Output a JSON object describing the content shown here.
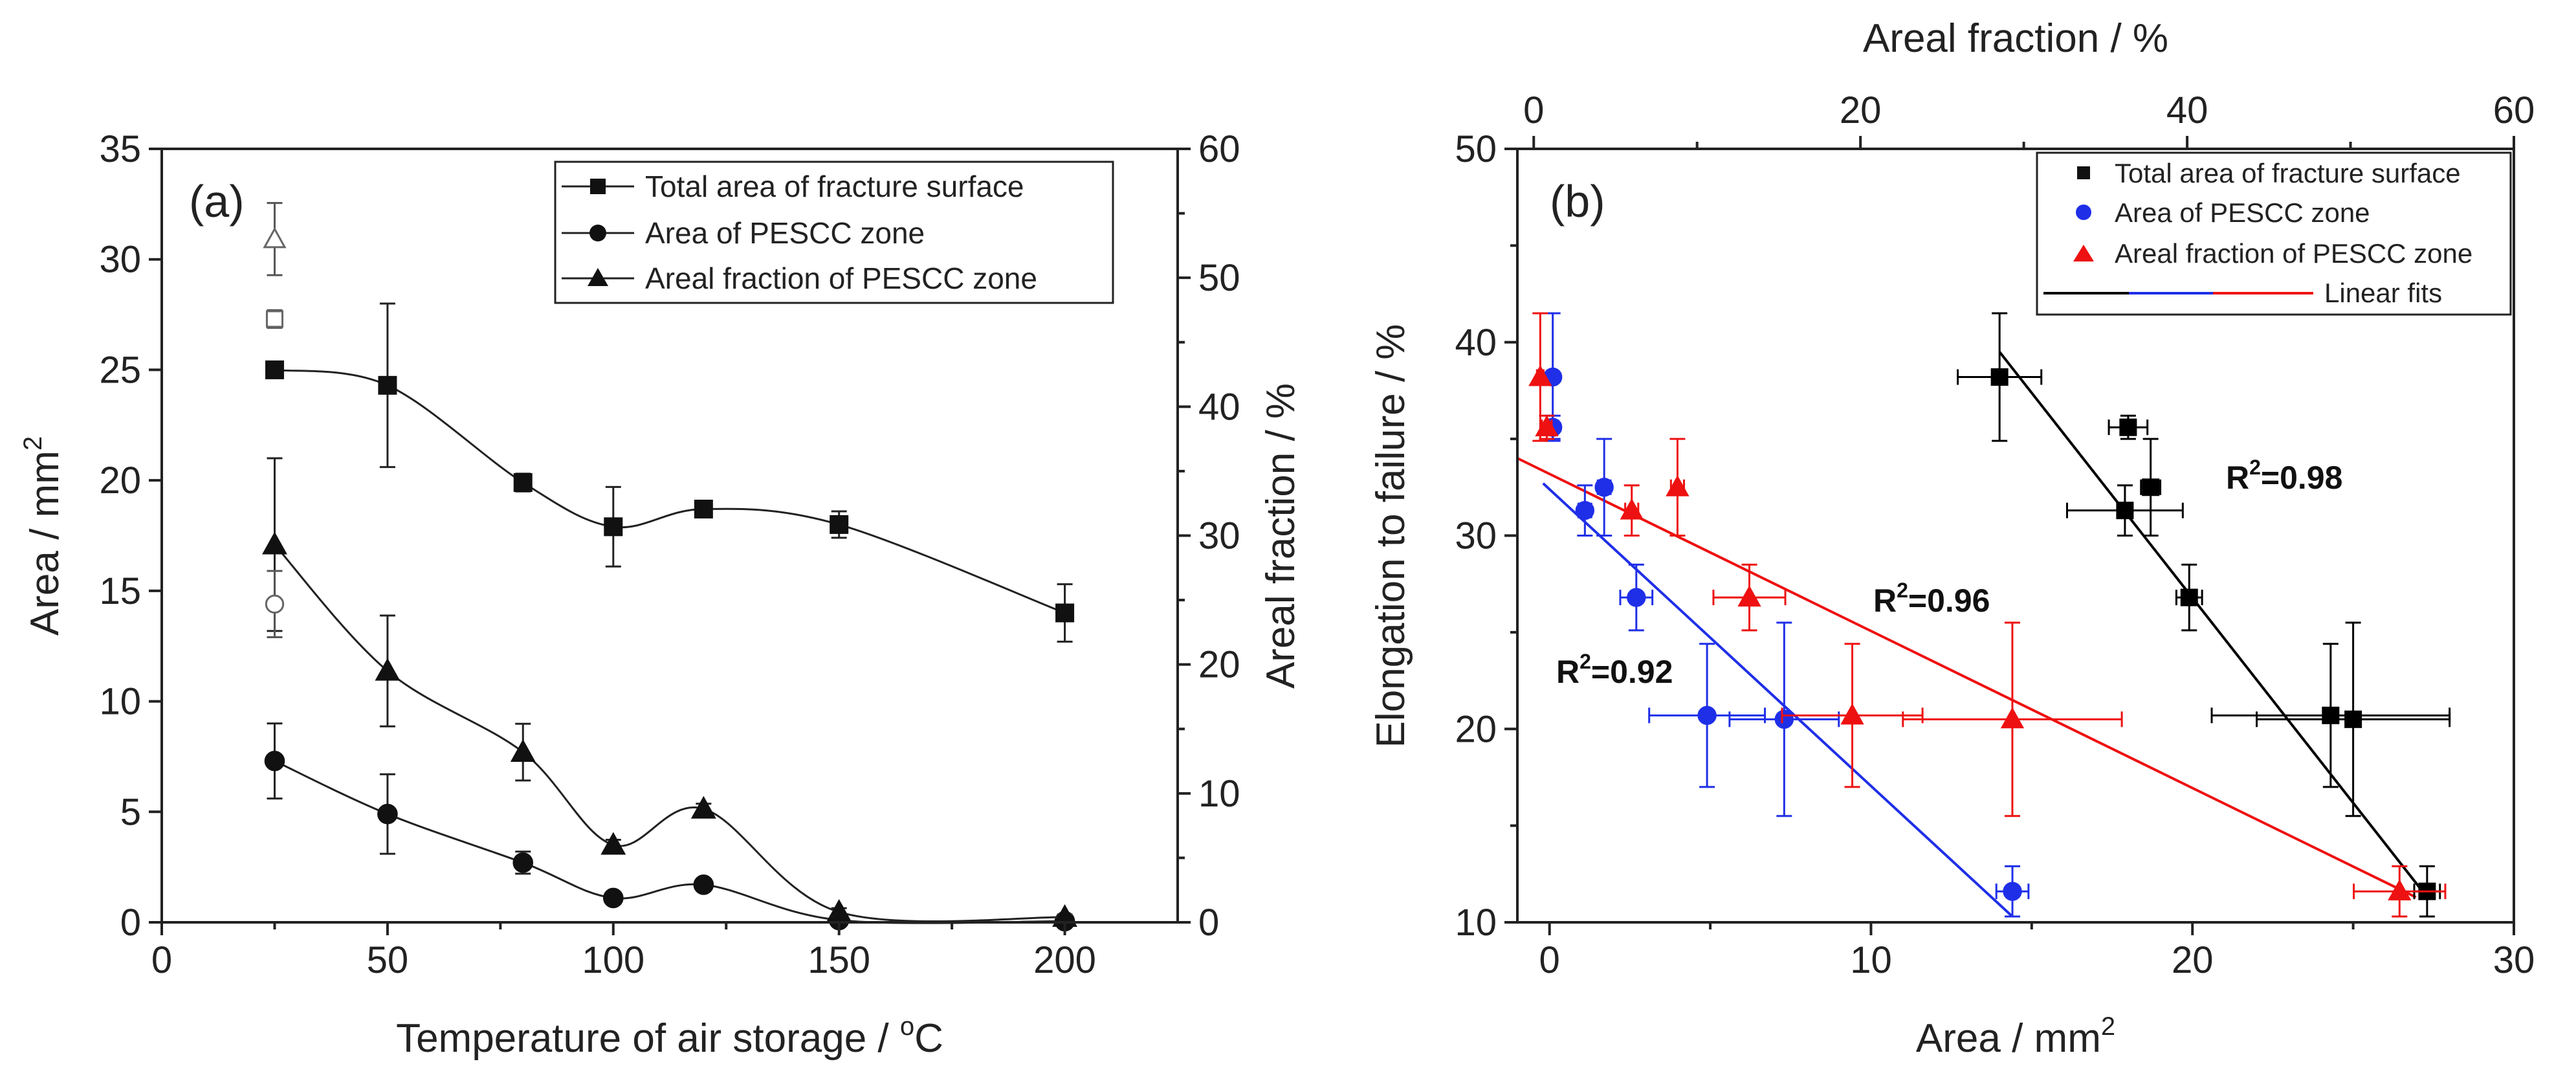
{
  "figure": {
    "panels": [
      "(a)",
      "(b)"
    ]
  },
  "chart_data": [
    {
      "type": "line",
      "panel_label": "(a)",
      "xlabel": "Temperature of air storage / °C",
      "xlabel_main": "Temperature of air storage / ",
      "xlabel_sup": "o",
      "xlabel_tail": "C",
      "ylabel": "Area / mm2",
      "ylabel_main": "Area / mm",
      "ylabel_sup": "2",
      "y2label": "Areal fraction / %",
      "xlim": [
        0,
        225
      ],
      "ylim": [
        0,
        35
      ],
      "y2lim": [
        0,
        60
      ],
      "xticks": [
        0,
        50,
        100,
        150,
        200
      ],
      "yticks": [
        0,
        5,
        10,
        15,
        20,
        25,
        30,
        35
      ],
      "y2ticks": [
        0,
        10,
        20,
        30,
        40,
        50,
        60
      ],
      "legend_position": "top-right",
      "series": [
        {
          "name": "Total area of fracture surface",
          "marker": "square",
          "axis": "left",
          "x": [
            25,
            50,
            80,
            100,
            120,
            150,
            200
          ],
          "y": [
            25.0,
            24.3,
            19.9,
            17.9,
            18.7,
            18.0,
            14.0
          ],
          "err": [
            0.3,
            3.7,
            0.4,
            1.8,
            0.3,
            0.6,
            1.3
          ]
        },
        {
          "name": "Area of PESCC zone",
          "marker": "circle",
          "axis": "left",
          "x": [
            25,
            50,
            80,
            100,
            120,
            150,
            200
          ],
          "y": [
            7.3,
            4.9,
            2.7,
            1.1,
            1.7,
            0.1,
            0.05
          ],
          "err": [
            1.7,
            1.8,
            0.5,
            0.2,
            0.2,
            0.1,
            0.05
          ]
        },
        {
          "name": "Areal fraction of PESCC zone",
          "marker": "triangle",
          "axis": "right",
          "x": [
            25,
            50,
            80,
            100,
            120,
            150,
            200
          ],
          "y": [
            29.3,
            19.5,
            13.2,
            6.0,
            8.8,
            0.8,
            0.4
          ],
          "err": [
            6.7,
            4.3,
            2.2,
            0.4,
            0.4,
            0.3,
            0.2
          ]
        }
      ],
      "open_points": [
        {
          "marker": "square",
          "axis": "left",
          "x": 25,
          "y": 27.3,
          "err": 0.4
        },
        {
          "marker": "circle",
          "axis": "left",
          "x": 25,
          "y": 14.4,
          "err": 1.5
        },
        {
          "marker": "triangle",
          "axis": "right",
          "x": 25,
          "y": 53.0,
          "err": 2.8
        }
      ]
    },
    {
      "type": "scatter",
      "panel_label": "(b)",
      "xlabel": "Area / mm2",
      "xlabel_main": "Area / mm",
      "xlabel_sup": "2",
      "ylabel": "Elongation to failure / %",
      "x2label": "Areal fraction / %",
      "xlim": [
        -1,
        30
      ],
      "ylim": [
        10,
        50
      ],
      "x2lim": [
        -1,
        60
      ],
      "xticks": [
        0,
        10,
        20,
        30
      ],
      "yticks": [
        10,
        20,
        30,
        40,
        50
      ],
      "x2ticks": [
        0,
        20,
        40,
        60
      ],
      "legend_position": "top-right",
      "series": [
        {
          "name": "Total area of fracture surface",
          "marker": "square",
          "color": "#000000",
          "axis": "bottom",
          "x": [
            14.0,
            17.9,
            18.0,
            18.7,
            19.9,
            24.3,
            25.0,
            27.3
          ],
          "y": [
            38.2,
            31.3,
            35.6,
            32.5,
            26.8,
            20.7,
            20.5,
            11.6
          ],
          "xerr": [
            1.3,
            1.8,
            0.6,
            0.3,
            0.4,
            3.7,
            3.0,
            0.4
          ],
          "yerr": [
            3.3,
            1.3,
            0.6,
            2.5,
            1.7,
            3.7,
            5.0,
            1.3
          ]
        },
        {
          "name": "Area of PESCC zone",
          "marker": "circle",
          "color": "#1f2fe8",
          "axis": "bottom",
          "x": [
            0.1,
            0.1,
            1.1,
            1.7,
            2.7,
            4.9,
            7.3,
            14.4
          ],
          "y": [
            38.2,
            35.6,
            31.3,
            32.5,
            26.8,
            20.7,
            20.5,
            11.6
          ],
          "xerr": [
            0.1,
            0.1,
            0.2,
            0.2,
            0.5,
            1.8,
            1.7,
            0.5
          ],
          "yerr": [
            3.3,
            0.6,
            1.3,
            2.5,
            1.7,
            3.7,
            5.0,
            1.3
          ]
        },
        {
          "name": "Areal fraction of PESCC zone",
          "marker": "triangle",
          "color": "#ee1111",
          "axis": "top",
          "x": [
            0.4,
            0.8,
            6.0,
            8.8,
            13.2,
            19.5,
            29.3,
            53.0
          ],
          "y": [
            38.2,
            35.6,
            31.3,
            32.5,
            26.8,
            20.7,
            20.5,
            11.6
          ],
          "xerr": [
            0.2,
            0.3,
            0.4,
            0.4,
            2.2,
            4.3,
            6.7,
            2.8
          ],
          "yerr": [
            3.3,
            0.6,
            1.3,
            2.5,
            1.7,
            3.7,
            5.0,
            1.3
          ]
        }
      ],
      "fits": [
        {
          "name": "Linear fits",
          "color": "#000000",
          "axis": "bottom",
          "x": [
            14.0,
            27.3
          ],
          "y": [
            39.5,
            11.3
          ],
          "r2_label": "R",
          "r2_sup": "2",
          "r2_value": "=0.98"
        },
        {
          "name": "Linear fits",
          "color": "#1f2fe8",
          "axis": "bottom",
          "x": [
            -0.2,
            14.4
          ],
          "y": [
            32.7,
            10.3
          ],
          "r2_label": "R",
          "r2_sup": "2",
          "r2_value": "=0.92"
        },
        {
          "name": "Linear fits",
          "color": "#ee1111",
          "axis": "top",
          "x": [
            -1.0,
            54.0
          ],
          "y": [
            34.0,
            11.3
          ],
          "r2_label": "R",
          "r2_sup": "2",
          "r2_value": "=0.96"
        }
      ],
      "legend_fit_label": "Linear fits"
    }
  ]
}
